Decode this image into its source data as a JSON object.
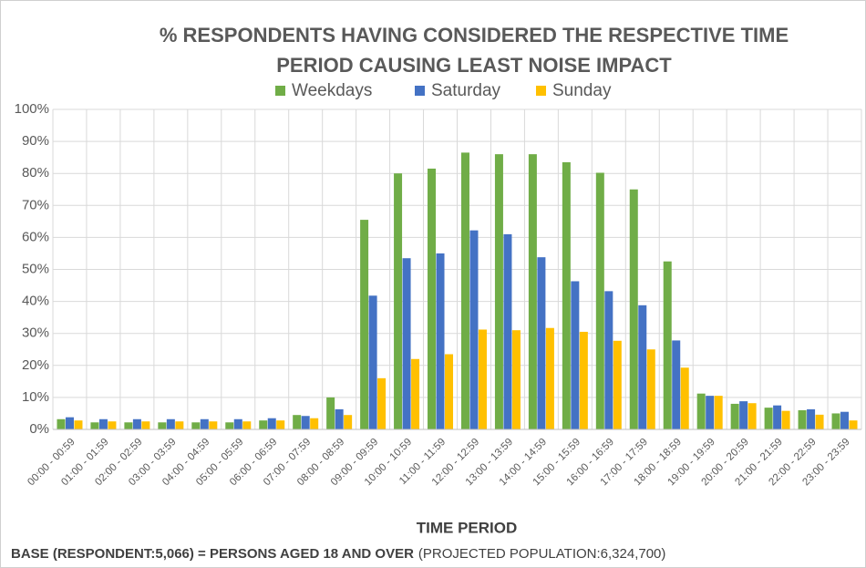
{
  "chart_data": {
    "type": "bar",
    "title": [
      "% RESPONDENTS HAVING CONSIDERED THE RESPECTIVE TIME",
      "PERIOD CAUSING LEAST NOISE IMPACT"
    ],
    "x_label": "TIME PERIOD",
    "notes": [
      "BASE (RESPONDENT:5,066) = PERSONS AGED 18 AND OVER",
      "(PROJECTED POPULATION:6,324,700)"
    ],
    "categories": [
      "00:00 - 00:59",
      "01:00 - 01:59",
      "02:00 - 02:59",
      "03:00 - 03:59",
      "04:00 - 04:59",
      "05:00 - 05:59",
      "06:00 - 06:59",
      "07:00 - 07:59",
      "08:00 - 08:59",
      "09:00 - 09:59",
      "10:00 - 10:59",
      "11:00 - 11:59",
      "12:00 - 12:59",
      "13:00 - 13:59",
      "14:00 - 14:59",
      "15:00 - 15:59",
      "16:00 - 16:59",
      "17:00 - 17:59",
      "18:00 - 18:59",
      "19:00 - 19:59",
      "20:00 - 20:59",
      "21:00 - 21:59",
      "22:00 - 22:59",
      "23:00 - 23:59"
    ],
    "series": [
      {
        "name": "Weekdays",
        "color": "#70ad47",
        "values": [
          3.2,
          2.2,
          2.2,
          2.2,
          2.2,
          2.2,
          2.8,
          4.5,
          10,
          65.5,
          80,
          81.5,
          86.5,
          86,
          86,
          83.5,
          80.2,
          75,
          52.5,
          11.2,
          8,
          6.8,
          6,
          5
        ]
      },
      {
        "name": "Saturday",
        "color": "#4472c4",
        "values": [
          3.8,
          3.2,
          3.2,
          3.2,
          3.2,
          3.2,
          3.5,
          4.2,
          6.3,
          41.8,
          53.5,
          55,
          62.2,
          61,
          53.8,
          46.3,
          43.2,
          38.8,
          27.8,
          10.5,
          8.8,
          7.5,
          6.3,
          5.5
        ]
      },
      {
        "name": "Sunday",
        "color": "#ffc000",
        "values": [
          2.8,
          2.5,
          2.5,
          2.5,
          2.5,
          2.5,
          2.8,
          3.5,
          4.5,
          16,
          22,
          23.5,
          31.2,
          31,
          31.7,
          30.5,
          27.7,
          25,
          19.3,
          10.5,
          8.2,
          5.8,
          4.6,
          2.8
        ]
      }
    ],
    "ylim": [
      0,
      100
    ],
    "yticks": [
      {
        "value": 0,
        "label": "0%"
      },
      {
        "value": 10,
        "label": "10%"
      },
      {
        "value": 20,
        "label": "20%"
      },
      {
        "value": 30,
        "label": "30%"
      },
      {
        "value": 40,
        "label": "40%"
      },
      {
        "value": 50,
        "label": "50%"
      },
      {
        "value": 60,
        "label": "60%"
      },
      {
        "value": 70,
        "label": "70%"
      },
      {
        "value": 80,
        "label": "80%"
      },
      {
        "value": 90,
        "label": "90%"
      },
      {
        "value": 100,
        "label": "100%"
      }
    ],
    "grid": true,
    "legend": "top"
  }
}
